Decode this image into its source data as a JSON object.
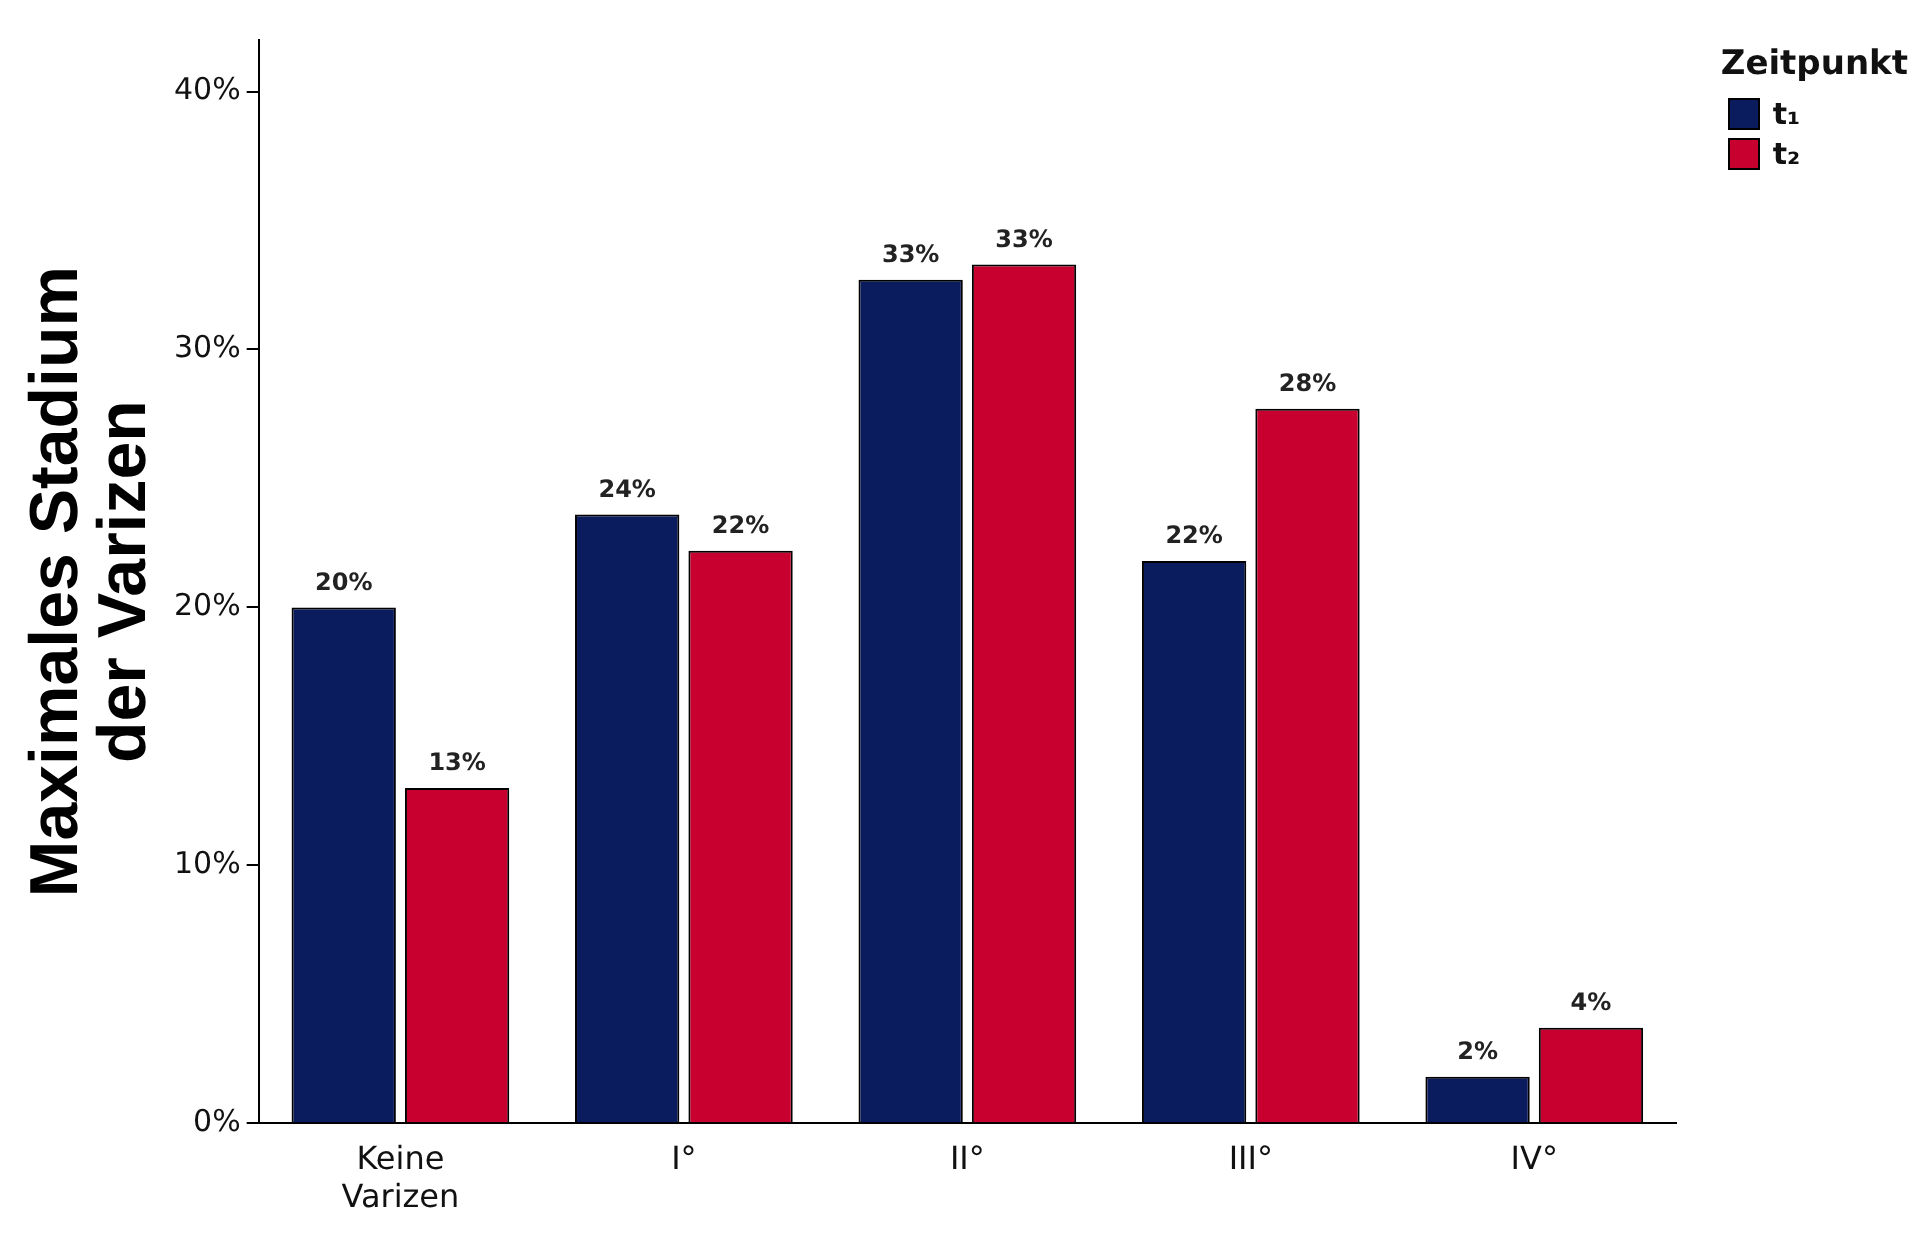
{
  "chart_data": {
    "type": "bar",
    "ylabel": "Maximales Stadium der Varizen",
    "legend_title": "Zeitpunkt",
    "categories": [
      "Keine Varizen",
      "I°",
      "II°",
      "III°",
      "IV°"
    ],
    "series": [
      {
        "name": "t₁",
        "color": "#0b1c5e",
        "values": [
          20.0,
          23.6,
          32.7,
          21.8,
          1.8
        ],
        "value_labels": [
          "20%",
          "24%",
          "33%",
          "22%",
          "2%"
        ]
      },
      {
        "name": "t₂",
        "color": "#c8002f",
        "values": [
          13.0,
          22.2,
          33.3,
          27.7,
          3.7
        ],
        "value_labels": [
          "13%",
          "22%",
          "33%",
          "28%",
          "4%"
        ]
      }
    ],
    "ylim": [
      0,
      42
    ],
    "yticks": [
      {
        "value": 0,
        "label": "0%"
      },
      {
        "value": 10,
        "label": "10%"
      },
      {
        "value": 20,
        "label": "20%"
      },
      {
        "value": 30,
        "label": "30%"
      },
      {
        "value": 40,
        "label": "40%"
      }
    ],
    "legend": "top right",
    "grid": false
  }
}
